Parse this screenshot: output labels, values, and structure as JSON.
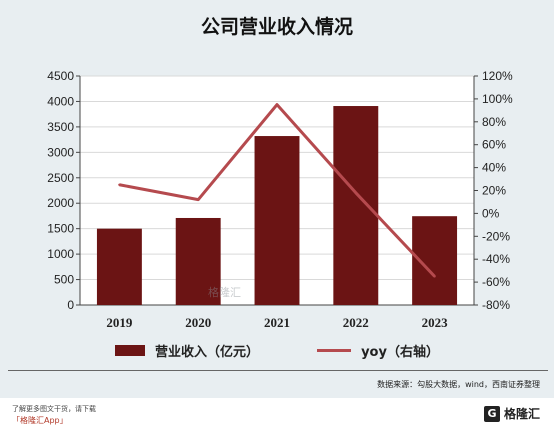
{
  "chart_data": {
    "type": "bar",
    "title": "公司营业收入情况",
    "categories": [
      "2019",
      "2020",
      "2021",
      "2022",
      "2023"
    ],
    "series": [
      {
        "name": "营业收入（亿元）",
        "type": "bar",
        "axis": "left",
        "color": "#6b1414",
        "values": [
          1500,
          1710,
          3320,
          3910,
          1745
        ]
      },
      {
        "name": "yoy（右轴）",
        "type": "line",
        "axis": "right",
        "color": "#b54a4e",
        "values": [
          0.25,
          0.12,
          0.95,
          0.18,
          -0.55
        ]
      }
    ],
    "yleft": {
      "min": 0,
      "max": 4500,
      "step": 500,
      "ticks": [
        "0",
        "500",
        "1000",
        "1500",
        "2000",
        "2500",
        "3000",
        "3500",
        "4000",
        "4500"
      ]
    },
    "yright": {
      "min": -0.8,
      "max": 1.2,
      "step": 0.2,
      "ticks": [
        "-80%",
        "-60%",
        "-40%",
        "-20%",
        "0%",
        "20%",
        "40%",
        "60%",
        "80%",
        "100%",
        "120%"
      ]
    },
    "grid": true,
    "legend": "bottom-center"
  },
  "source_note": "数据来源：勾股大数据，wind，西南证券整理",
  "watermark": "格隆汇",
  "footer": {
    "line1": "了解更多图文干货，请下载",
    "line2": "「格隆汇App」"
  },
  "logo": {
    "mark": "G",
    "text": "格隆汇"
  }
}
